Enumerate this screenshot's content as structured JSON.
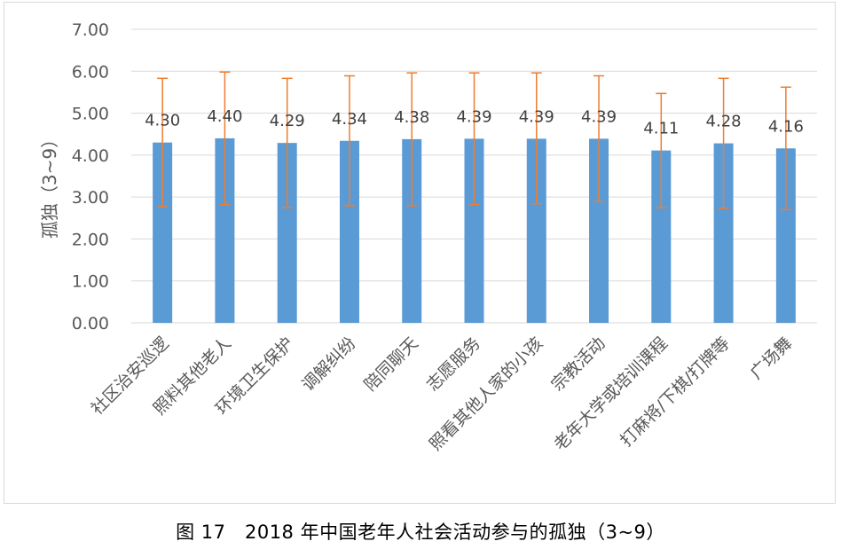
{
  "caption": "图 17　2018 年中国老年人社会活动参与的孤独（3~9）",
  "colors": {
    "bar": "#5b9bd5",
    "error_bar": "#ed7d31",
    "grid": "#d9d9d9",
    "text": "#595959"
  },
  "chart_data": {
    "type": "bar",
    "title": "",
    "xlabel": "",
    "ylabel": "孤独（3~9）",
    "ylim": [
      0,
      7
    ],
    "yticks": [
      "0.00",
      "1.00",
      "2.00",
      "3.00",
      "4.00",
      "5.00",
      "6.00",
      "7.00"
    ],
    "grid": true,
    "legend": "none",
    "categories": [
      "社区治安巡逻",
      "照料其他老人",
      "环境卫生保护",
      "调解纠纷",
      "陪同聊天",
      "志愿服务",
      "照看其他人家的小孩",
      "宗教活动",
      "老年大学或培训课程",
      "打麻将/下棋/打牌等",
      "广场舞"
    ],
    "values": [
      4.3,
      4.4,
      4.29,
      4.34,
      4.38,
      4.39,
      4.39,
      4.39,
      4.11,
      4.28,
      4.16
    ],
    "data_labels": [
      "4.30",
      "4.40",
      "4.29",
      "4.34",
      "4.38",
      "4.39",
      "4.39",
      "4.39",
      "4.11",
      "4.28",
      "4.16"
    ],
    "error_upper": [
      5.83,
      5.98,
      5.83,
      5.89,
      5.96,
      5.96,
      5.96,
      5.89,
      5.47,
      5.83,
      5.62
    ],
    "error_lower": [
      2.77,
      2.82,
      2.75,
      2.79,
      2.79,
      2.82,
      2.84,
      2.89,
      2.75,
      2.73,
      2.7
    ]
  }
}
